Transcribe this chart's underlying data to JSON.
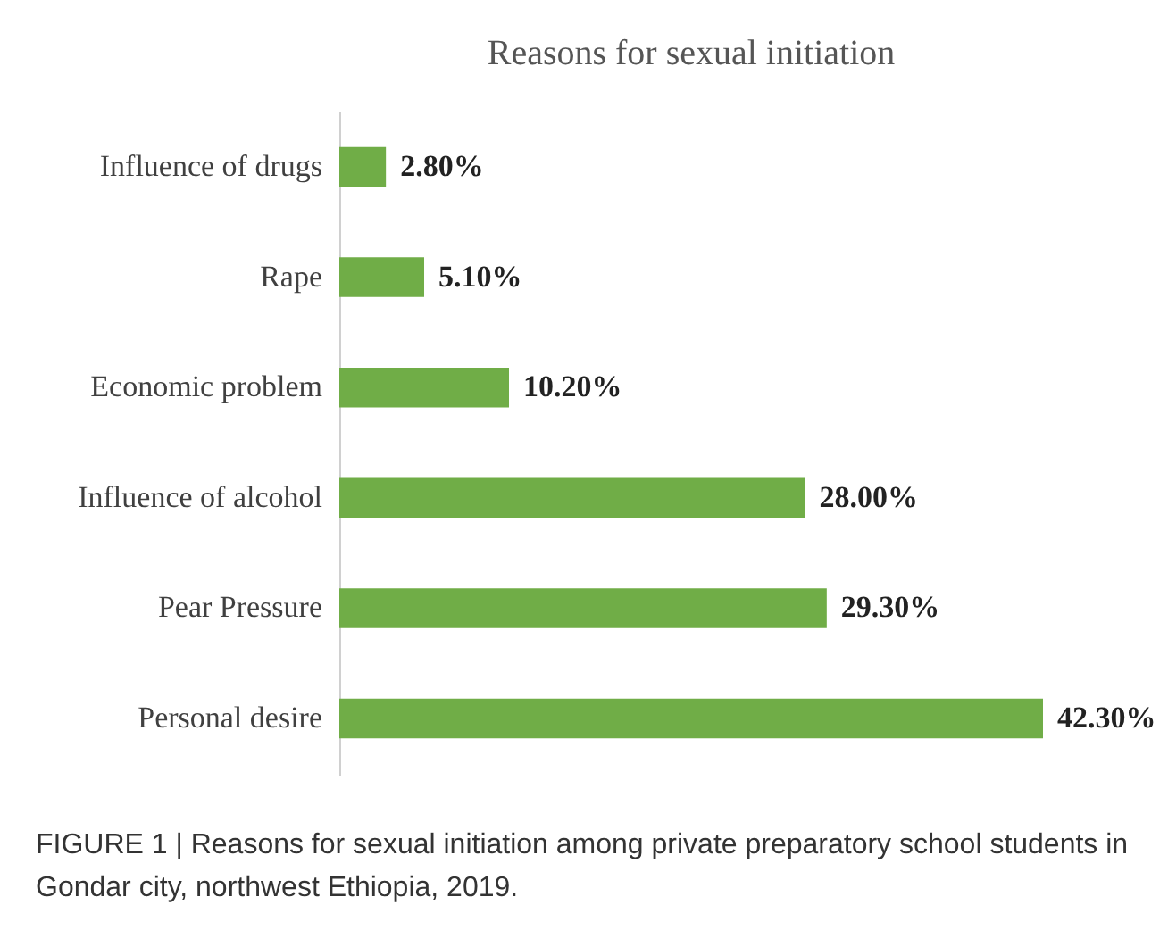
{
  "chart_data": {
    "type": "bar",
    "orientation": "horizontal",
    "title": "Reasons for sexual initiation",
    "categories": [
      "Influence of drugs",
      "Rape",
      "Economic problem",
      "Influence of alcohol",
      "Pear Pressure",
      "Personal desire"
    ],
    "values": [
      2.8,
      5.1,
      10.2,
      28.0,
      29.3,
      42.3
    ],
    "value_labels": [
      "2.80%",
      "5.10%",
      "10.20%",
      "28.00%",
      "29.30%",
      "42.30%"
    ],
    "color": "#70ad47",
    "annotations": [
      "FIGURE 1 | Reasons for sexual initiation among private preparatory school students in Gondar city, northwest Ethiopia, 2019."
    ]
  }
}
